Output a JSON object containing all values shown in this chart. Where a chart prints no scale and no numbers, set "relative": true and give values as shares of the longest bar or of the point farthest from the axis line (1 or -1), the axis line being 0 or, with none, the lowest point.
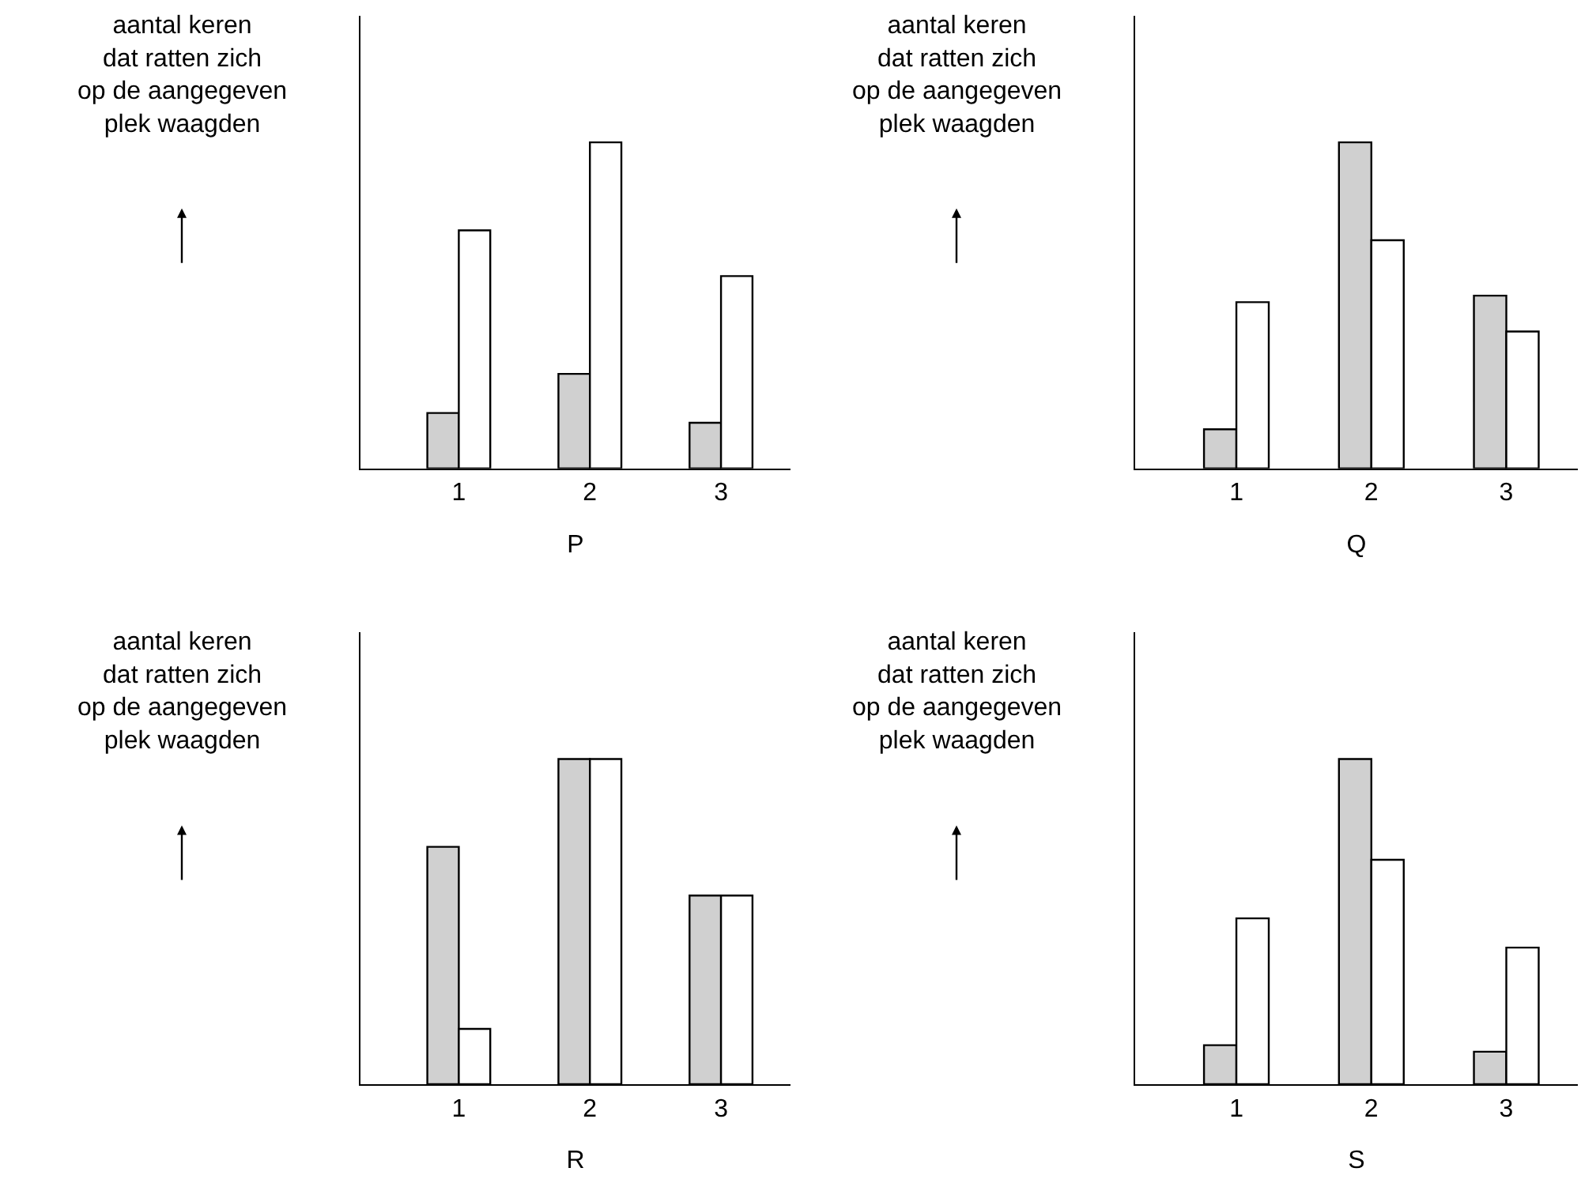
{
  "chart_data": [
    {
      "type": "bar",
      "relative": true,
      "xlabel": "P",
      "ylabel": "aantal keren\ndat ratten zich\nop de aangegeven\nplek waagden",
      "categories": [
        "1",
        "2",
        "3"
      ],
      "series": [
        {
          "color": "#d0d0d0",
          "values": [
            0.17,
            0.29,
            0.14
          ]
        },
        {
          "color": "#ffffff",
          "values": [
            0.73,
            1,
            0.59
          ]
        }
      ]
    },
    {
      "type": "bar",
      "relative": true,
      "xlabel": "Q",
      "ylabel": "aantal keren\ndat ratten zich\nop de aangegeven\nplek waagden",
      "categories": [
        "1",
        "2",
        "3"
      ],
      "series": [
        {
          "color": "#d0d0d0",
          "values": [
            0.12,
            1,
            0.53
          ]
        },
        {
          "color": "#ffffff",
          "values": [
            0.51,
            0.7,
            0.42
          ]
        }
      ]
    },
    {
      "type": "bar",
      "relative": true,
      "xlabel": "R",
      "ylabel": "aantal keren\ndat ratten zich\nop de aangegeven\nplek waagden",
      "categories": [
        "1",
        "2",
        "3"
      ],
      "series": [
        {
          "color": "#d0d0d0",
          "values": [
            0.73,
            1,
            0.58
          ]
        },
        {
          "color": "#ffffff",
          "values": [
            0.17,
            1,
            0.58
          ]
        }
      ]
    },
    {
      "type": "bar",
      "relative": true,
      "xlabel": "S",
      "ylabel": "aantal keren\ndat ratten zich\nop de aangegeven\nplek waagden",
      "categories": [
        "1",
        "2",
        "3"
      ],
      "series": [
        {
          "color": "#d0d0d0",
          "values": [
            0.12,
            1,
            0.1
          ]
        },
        {
          "color": "#ffffff",
          "values": [
            0.51,
            0.69,
            0.42
          ]
        }
      ]
    }
  ]
}
